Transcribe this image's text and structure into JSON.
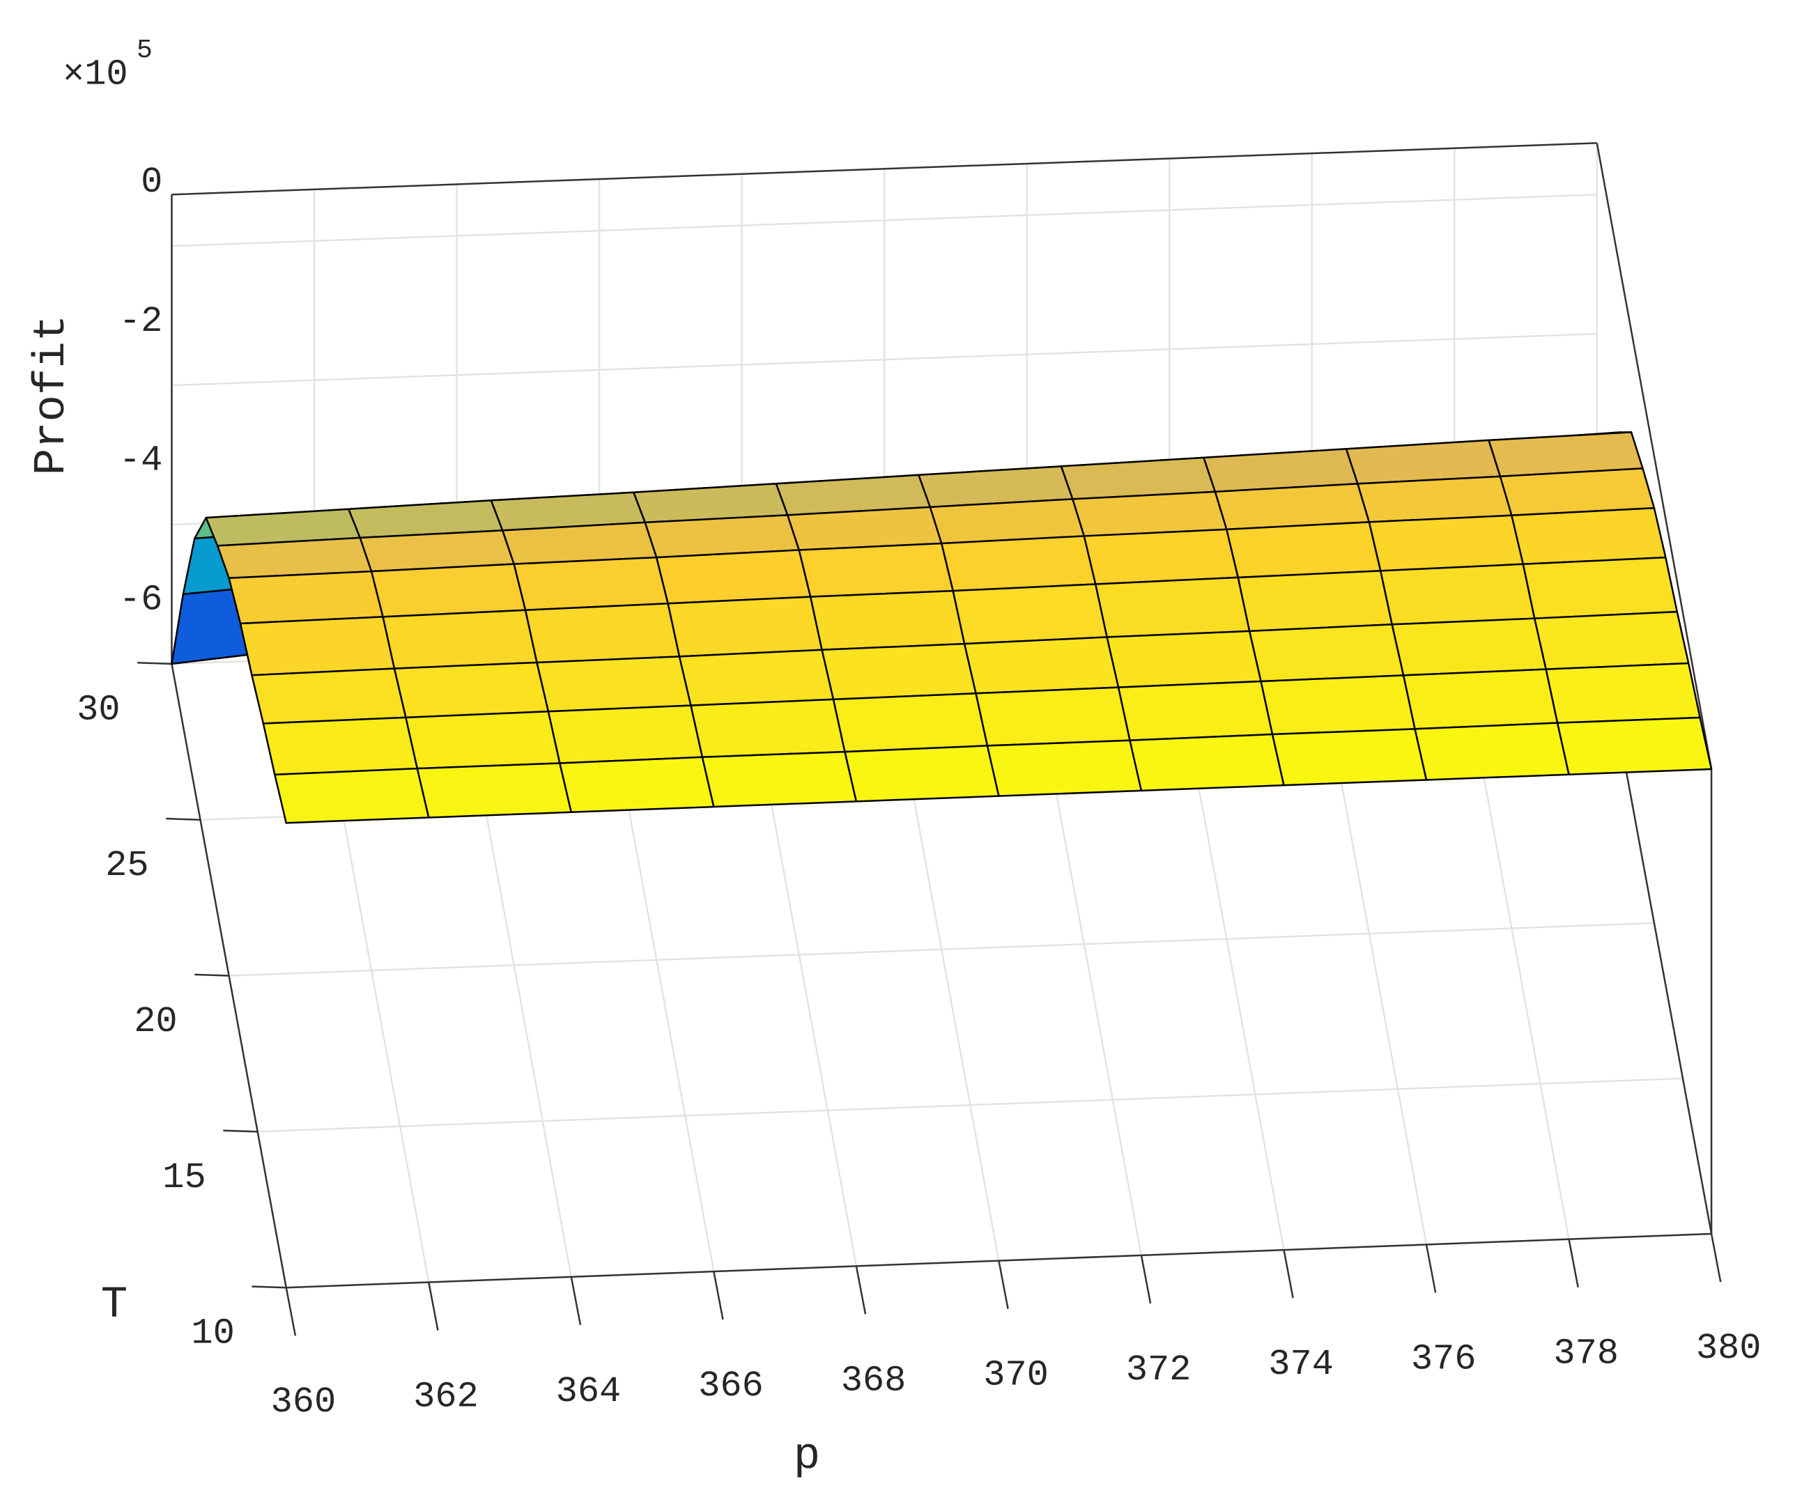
{
  "chart_data": {
    "type": "surface",
    "x_label": "p",
    "y_label": "T",
    "z_label": "Profit",
    "z_multiplier": "×10",
    "z_exponent": "5",
    "x": [
      360,
      362,
      364,
      366,
      368,
      370,
      372,
      374,
      376,
      378,
      380
    ],
    "y": [
      10,
      12,
      14,
      16,
      18,
      20,
      22,
      24,
      26,
      28,
      30
    ],
    "z": [
      [
        0.74,
        0.74,
        0.74,
        0.74,
        0.74,
        0.74,
        0.74,
        0.74,
        0.74,
        0.74,
        0.74
      ],
      [
        0.53,
        0.54,
        0.54,
        0.55,
        0.55,
        0.56,
        0.56,
        0.57,
        0.57,
        0.58,
        0.58
      ],
      [
        0.36,
        0.37,
        0.38,
        0.39,
        0.4,
        0.41,
        0.42,
        0.43,
        0.44,
        0.45,
        0.46
      ],
      [
        0.15,
        0.17,
        0.18,
        0.19,
        0.21,
        0.22,
        0.24,
        0.25,
        0.27,
        0.28,
        0.3
      ],
      [
        -0.01,
        0.01,
        0.03,
        0.05,
        0.07,
        0.08,
        0.1,
        0.12,
        0.14,
        0.16,
        0.18
      ],
      [
        -0.26,
        -0.24,
        -0.21,
        -0.19,
        -0.16,
        -0.14,
        -0.11,
        -0.09,
        -0.06,
        -0.04,
        -0.01
      ],
      [
        -0.7,
        -0.66,
        -0.63,
        -0.59,
        -0.56,
        -0.52,
        -0.48,
        -0.45,
        -0.41,
        -0.38,
        -0.34
      ],
      [
        -1.2,
        -1.15,
        -1.1,
        -1.06,
        -1.01,
        -0.96,
        -0.91,
        -0.86,
        -0.81,
        -0.76,
        -0.72
      ],
      [
        -2.4,
        -2.32,
        -2.24,
        -2.17,
        -2.09,
        -2.01,
        -1.93,
        -1.85,
        -1.77,
        -1.69,
        -1.62
      ],
      [
        -4.1,
        -3.98,
        -3.86,
        -3.74,
        -3.62,
        -3.5,
        -3.37,
        -3.25,
        -3.13,
        -3.01,
        -2.89
      ],
      [
        -6,
        -5.83,
        -5.66,
        -5.5,
        -5.33,
        -5.16,
        -4.99,
        -4.82,
        -4.65,
        -4.48,
        -4.32
      ]
    ],
    "xlim": [
      360,
      380
    ],
    "ylim": [
      10,
      30
    ],
    "zlim": [
      -6,
      0.74
    ],
    "xticks": [
      360,
      362,
      364,
      366,
      368,
      370,
      372,
      374,
      376,
      378,
      380
    ],
    "yticks": [
      10,
      15,
      20,
      25,
      30
    ],
    "zticks": [
      -6,
      -4,
      -2,
      0
    ],
    "grid": true,
    "colormap": "parula",
    "edge_color": "#000000"
  }
}
